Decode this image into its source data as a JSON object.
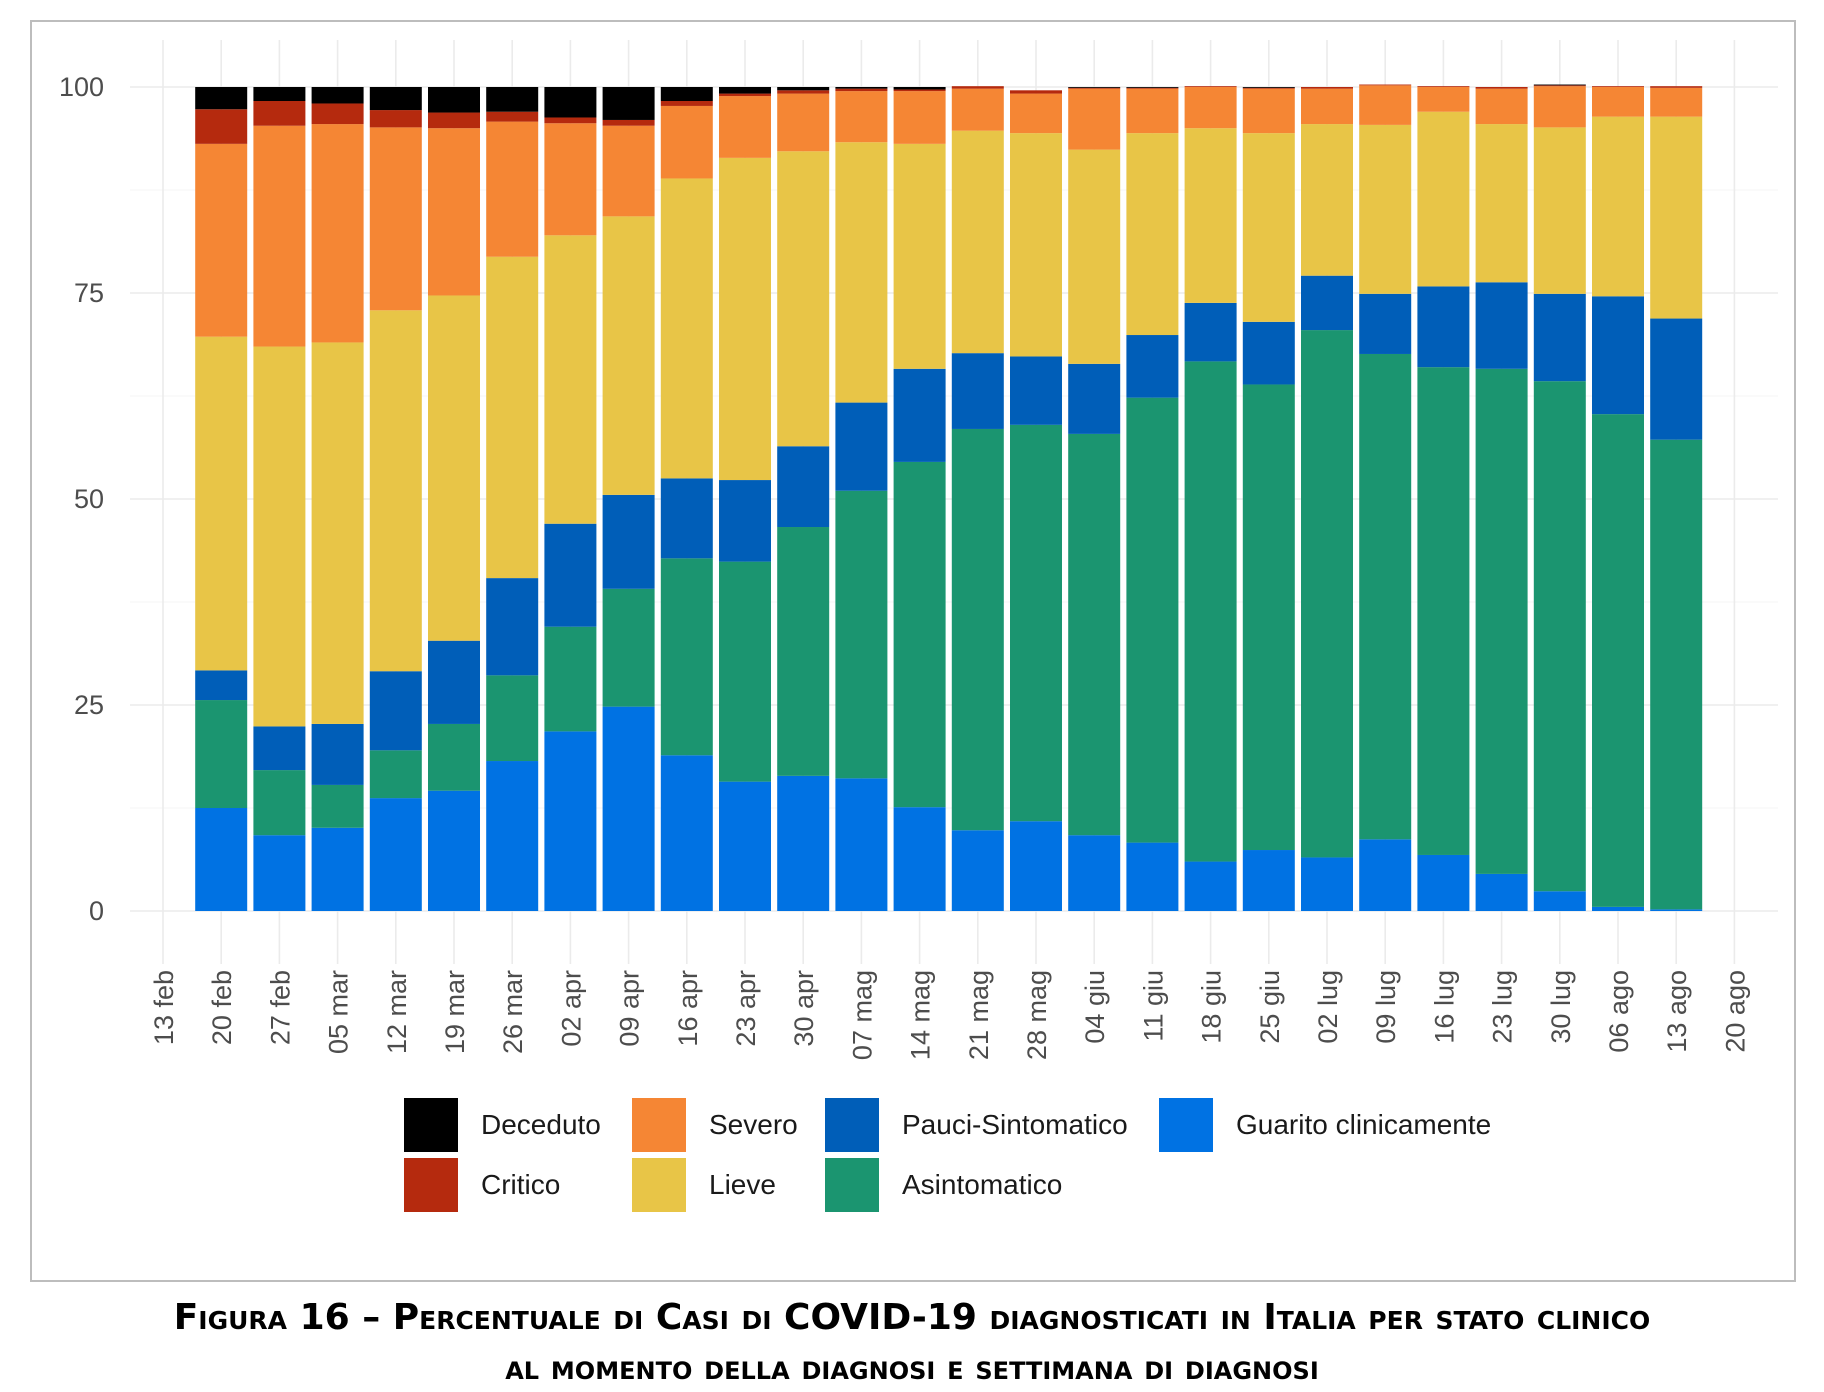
{
  "chart_data": {
    "type": "bar",
    "stacked": true,
    "categories": [
      "13 feb",
      "20 feb",
      "27 feb",
      "05 mar",
      "12 mar",
      "19 mar",
      "26 mar",
      "02 apr",
      "09 apr",
      "16 apr",
      "23 apr",
      "30 apr",
      "07 mag",
      "14 mag",
      "21 mag",
      "28 mag",
      "04 giu",
      "11 giu",
      "18 giu",
      "25 giu",
      "02 lug",
      "09 lug",
      "16 lug",
      "23 lug",
      "30 lug",
      "06 ago",
      "13 ago",
      "20 ago"
    ],
    "ylim": [
      0,
      100
    ],
    "yticks": [
      0,
      25,
      50,
      75,
      100
    ],
    "grid": true,
    "legend_position": "bottom",
    "series": [
      {
        "name": "Guarito clinicamente",
        "color": "#0072E3",
        "values": [
          null,
          12.5,
          9.2,
          10.1,
          13.7,
          14.6,
          18.2,
          21.8,
          24.8,
          18.9,
          15.7,
          16.4,
          16.1,
          12.6,
          9.8,
          10.9,
          9.2,
          8.3,
          6.0,
          7.4,
          6.5,
          8.7,
          6.8,
          4.5,
          2.4,
          0.5,
          0.2,
          null
        ]
      },
      {
        "name": "Asintomatico",
        "color": "#1B9570",
        "values": [
          null,
          13.1,
          7.9,
          5.2,
          5.8,
          8.1,
          10.4,
          12.7,
          14.3,
          23.9,
          26.7,
          30.2,
          34.9,
          41.9,
          48.7,
          48.1,
          48.7,
          54.0,
          60.7,
          56.5,
          64.0,
          58.9,
          59.2,
          61.3,
          61.9,
          59.8,
          57.0,
          null
        ]
      },
      {
        "name": "Pauci-Sintomatico",
        "color": "#005EB8",
        "values": [
          null,
          3.6,
          5.3,
          7.4,
          9.6,
          10.1,
          11.8,
          12.5,
          11.4,
          9.7,
          9.9,
          9.8,
          10.7,
          11.3,
          9.2,
          8.3,
          8.5,
          7.6,
          7.1,
          7.6,
          6.6,
          7.3,
          9.8,
          10.5,
          10.6,
          14.3,
          14.7,
          null
        ]
      },
      {
        "name": "Lieve",
        "color": "#E8C547",
        "values": [
          null,
          40.5,
          46.1,
          46.3,
          43.8,
          41.9,
          39.0,
          35.0,
          33.8,
          36.4,
          39.1,
          35.8,
          31.6,
          27.3,
          27.0,
          27.1,
          26.0,
          24.5,
          21.2,
          22.9,
          18.4,
          20.5,
          21.2,
          19.2,
          20.2,
          21.8,
          24.5,
          null
        ]
      },
      {
        "name": "Severo",
        "color": "#F58634",
        "values": [
          null,
          23.4,
          26.8,
          26.5,
          22.2,
          20.3,
          16.4,
          13.6,
          11.0,
          8.8,
          7.5,
          7.0,
          6.2,
          6.4,
          5.1,
          4.8,
          7.4,
          5.4,
          5.0,
          5.4,
          4.3,
          4.8,
          3.0,
          4.3,
          5.0,
          3.6,
          3.5,
          null
        ]
      },
      {
        "name": "Critico",
        "color": "#B52A0E",
        "values": [
          null,
          4.2,
          3.0,
          2.5,
          2.1,
          1.9,
          1.2,
          0.7,
          0.7,
          0.6,
          0.3,
          0.4,
          0.3,
          0.2,
          0.3,
          0.4,
          0.1,
          0.1,
          0.1,
          0.1,
          0.2,
          0.1,
          0.1,
          0.2,
          0.1,
          0.1,
          0.2,
          null
        ]
      },
      {
        "name": "Deceduto",
        "color": "#000000",
        "values": [
          null,
          2.7,
          1.7,
          2.0,
          2.8,
          3.1,
          3.0,
          3.7,
          4.0,
          1.7,
          0.8,
          0.4,
          0.2,
          0.3,
          0.0,
          0.0,
          0.1,
          0.1,
          0.0,
          0.1,
          0.0,
          0.0,
          0.0,
          0.0,
          0.1,
          0.0,
          0.0,
          null
        ]
      }
    ],
    "legend_order": [
      "Deceduto",
      "Severo",
      "Pauci-Sintomatico",
      "Guarito clinicamente",
      "Critico",
      "Lieve",
      "Asintomatico"
    ]
  },
  "caption": {
    "line1": "Figura 16 – Percentuale di Casi di COVID-19 diagnosticati in Italia per stato clinico",
    "line2": "al momento della diagnosi e settimana di diagnosi"
  }
}
